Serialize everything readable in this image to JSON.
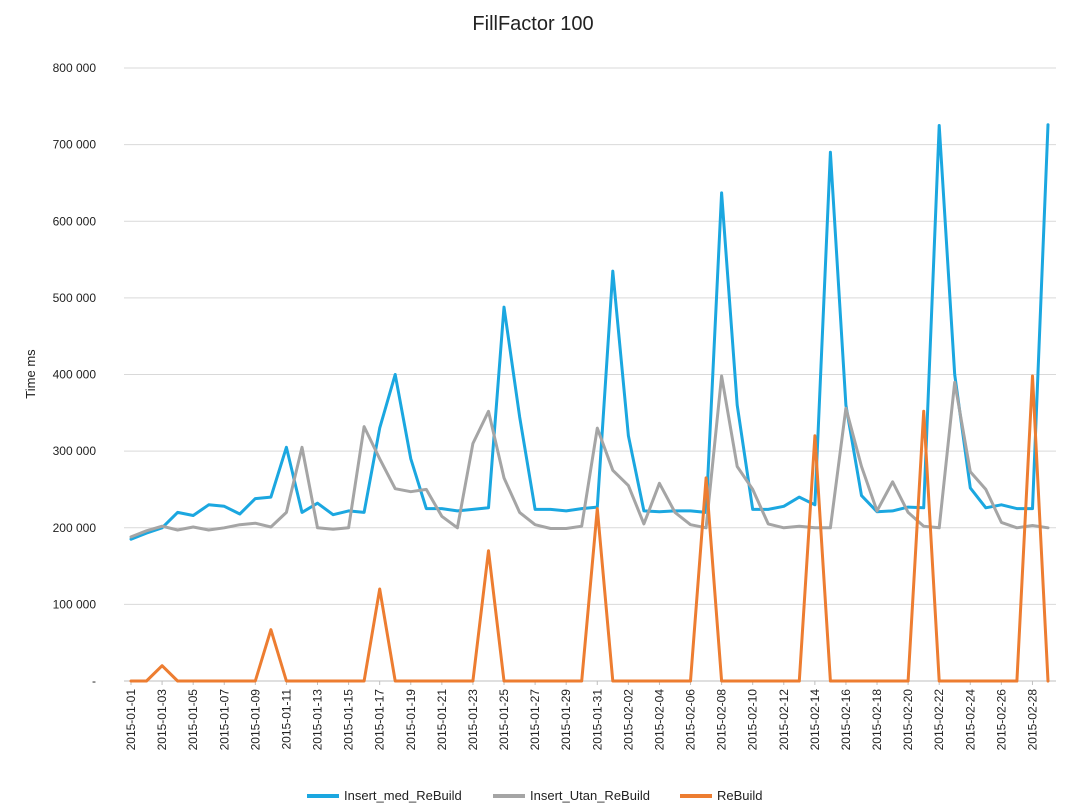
{
  "chart_data": {
    "type": "line",
    "title": "FillFactor 100",
    "ylabel": "Time ms",
    "xlabel": "",
    "ylim": [
      0,
      800000
    ],
    "yticks": [
      {
        "value": 0,
        "label": "-"
      },
      {
        "value": 100000,
        "label": "100 000"
      },
      {
        "value": 200000,
        "label": "200 000"
      },
      {
        "value": 300000,
        "label": "300 000"
      },
      {
        "value": 400000,
        "label": "400 000"
      },
      {
        "value": 500000,
        "label": "500 000"
      },
      {
        "value": 600000,
        "label": "600 000"
      },
      {
        "value": 700000,
        "label": "700 000"
      },
      {
        "value": 800000,
        "label": "800 000"
      }
    ],
    "grid": true,
    "legend_position": "bottom",
    "x": [
      "2015-01-01",
      "2015-01-02",
      "2015-01-03",
      "2015-01-04",
      "2015-01-05",
      "2015-01-06",
      "2015-01-07",
      "2015-01-08",
      "2015-01-09",
      "2015-01-10",
      "2015-01-11",
      "2015-01-12",
      "2015-01-13",
      "2015-01-14",
      "2015-01-15",
      "2015-01-16",
      "2015-01-17",
      "2015-01-18",
      "2015-01-19",
      "2015-01-20",
      "2015-01-21",
      "2015-01-22",
      "2015-01-23",
      "2015-01-24",
      "2015-01-25",
      "2015-01-26",
      "2015-01-27",
      "2015-01-28",
      "2015-01-29",
      "2015-01-30",
      "2015-01-31",
      "2015-02-01",
      "2015-02-02",
      "2015-02-03",
      "2015-02-04",
      "2015-02-05",
      "2015-02-06",
      "2015-02-07",
      "2015-02-08",
      "2015-02-09",
      "2015-02-10",
      "2015-02-11",
      "2015-02-12",
      "2015-02-13",
      "2015-02-14",
      "2015-02-15",
      "2015-02-16",
      "2015-02-17",
      "2015-02-18",
      "2015-02-19",
      "2015-02-20",
      "2015-02-21",
      "2015-02-22",
      "2015-02-23",
      "2015-02-24",
      "2015-02-25",
      "2015-02-26",
      "2015-02-27",
      "2015-02-28",
      "2015-03-01"
    ],
    "xtick_labels": [
      "2015-01-01",
      "2015-01-03",
      "2015-01-05",
      "2015-01-07",
      "2015-01-09",
      "2015-01-11",
      "2015-01-13",
      "2015-01-15",
      "2015-01-17",
      "2015-01-19",
      "2015-01-21",
      "2015-01-23",
      "2015-01-25",
      "2015-01-27",
      "2015-01-29",
      "2015-01-31",
      "2015-02-02",
      "2015-02-04",
      "2015-02-06",
      "2015-02-08",
      "2015-02-10",
      "2015-02-12",
      "2015-02-14",
      "2015-02-16",
      "2015-02-18",
      "2015-02-20",
      "2015-02-22",
      "2015-02-24",
      "2015-02-26",
      "2015-02-28"
    ],
    "series": [
      {
        "name": "Insert_med_ReBuild",
        "color": "#1ba7e0",
        "values": [
          185000,
          193000,
          200000,
          220000,
          216000,
          230000,
          228000,
          218000,
          238000,
          240000,
          305000,
          220000,
          232000,
          217000,
          222000,
          220000,
          330000,
          400000,
          290000,
          225000,
          225000,
          222000,
          224000,
          226000,
          488000,
          345000,
          224000,
          224000,
          222000,
          225000,
          227000,
          535000,
          320000,
          222000,
          221000,
          222000,
          222000,
          220000,
          637000,
          360000,
          224000,
          224000,
          228000,
          240000,
          230000,
          690000,
          360000,
          242000,
          221000,
          222000,
          227000,
          226000,
          725000,
          400000,
          252000,
          226000,
          230000,
          225000,
          225000,
          726000
        ]
      },
      {
        "name": "Insert_Utan_ReBuild",
        "color": "#a5a5a5",
        "values": [
          188000,
          196000,
          202000,
          197000,
          201000,
          197000,
          200000,
          204000,
          206000,
          201000,
          220000,
          305000,
          200000,
          198000,
          200000,
          332000,
          290000,
          251000,
          247000,
          250000,
          215000,
          200000,
          310000,
          352000,
          265000,
          220000,
          204000,
          199000,
          199000,
          202000,
          330000,
          275000,
          255000,
          205000,
          258000,
          220000,
          204000,
          200000,
          398000,
          280000,
          250000,
          205000,
          200000,
          202000,
          200000,
          200000,
          356000,
          280000,
          222000,
          260000,
          220000,
          202000,
          200000,
          390000,
          273000,
          250000,
          207000,
          200000,
          203000,
          200000
        ]
      },
      {
        "name": "ReBuild",
        "color": "#ed7d31",
        "values": [
          0,
          0,
          20000,
          0,
          0,
          0,
          0,
          0,
          0,
          67000,
          0,
          0,
          0,
          0,
          0,
          0,
          120000,
          0,
          0,
          0,
          0,
          0,
          0,
          170000,
          0,
          0,
          0,
          0,
          0,
          0,
          225000,
          0,
          0,
          0,
          0,
          0,
          0,
          265000,
          0,
          0,
          0,
          0,
          0,
          0,
          320000,
          0,
          0,
          0,
          0,
          0,
          0,
          352000,
          0,
          0,
          0,
          0,
          0,
          0,
          398000,
          0
        ]
      }
    ]
  }
}
